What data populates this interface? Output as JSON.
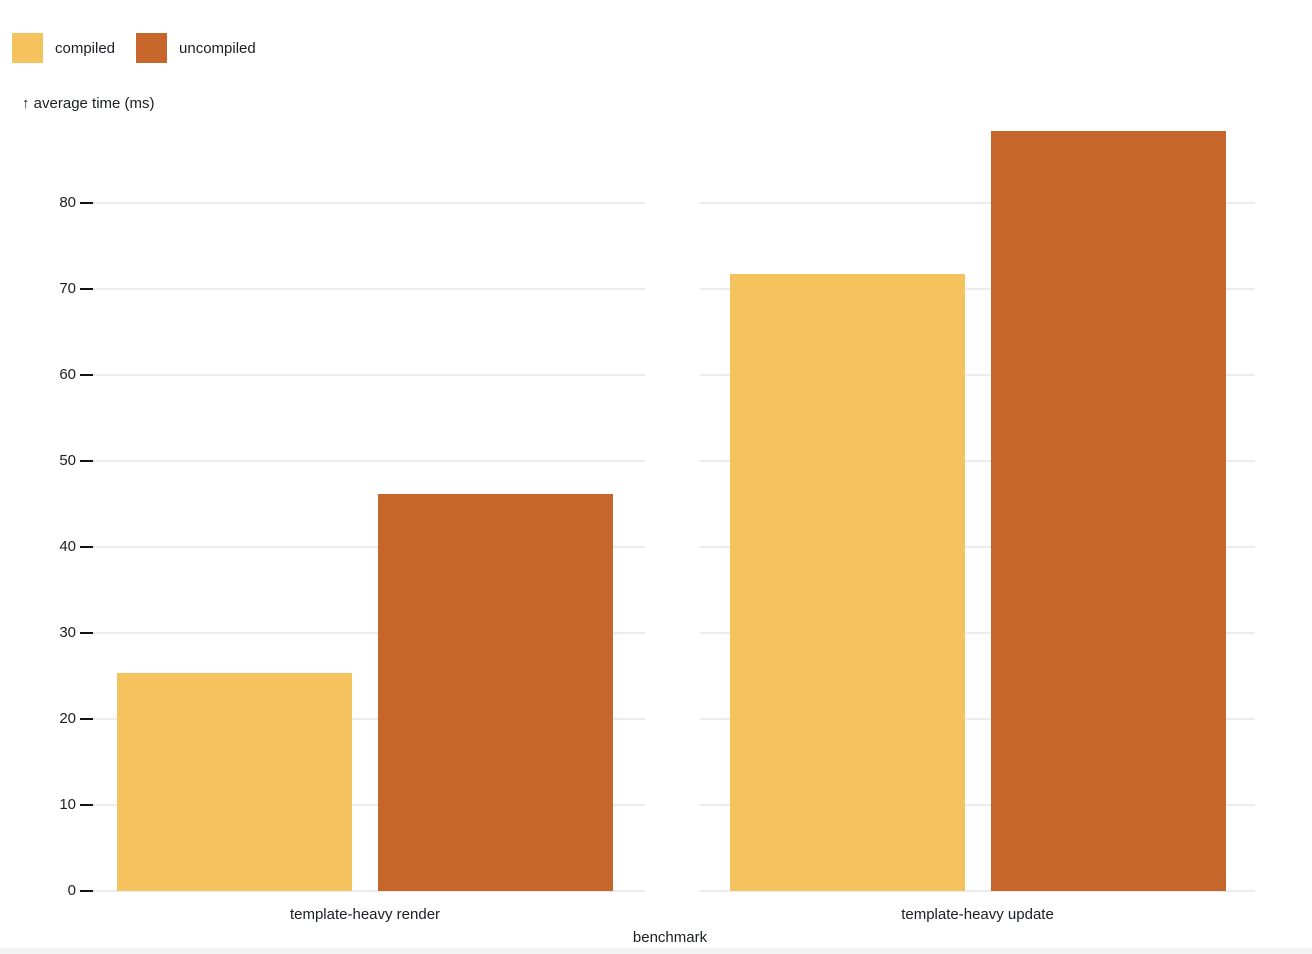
{
  "chart_data": {
    "type": "bar",
    "title": "",
    "xlabel": "benchmark",
    "ylabel": "↑ average time (ms)",
    "categories": [
      "template-heavy render",
      "template-heavy update"
    ],
    "series": [
      {
        "name": "compiled",
        "color": "#f4c35e",
        "values": [
          25.4,
          71.8
        ]
      },
      {
        "name": "uncompiled",
        "color": "#c7662a",
        "values": [
          46.2,
          88.4
        ]
      }
    ],
    "yticks": [
      0,
      10,
      20,
      30,
      40,
      50,
      60,
      70,
      80
    ],
    "ylim": [
      0,
      88.4
    ],
    "grid": true,
    "legend_position": "top-left",
    "legend_labels": [
      "compiled",
      "uncompiled"
    ]
  },
  "colors": {
    "compiled": "#f4c35e",
    "uncompiled": "#c7662a",
    "gridline": "#ececec",
    "text": "#1b1e23",
    "bottom_strip": "#f3f3f4"
  }
}
